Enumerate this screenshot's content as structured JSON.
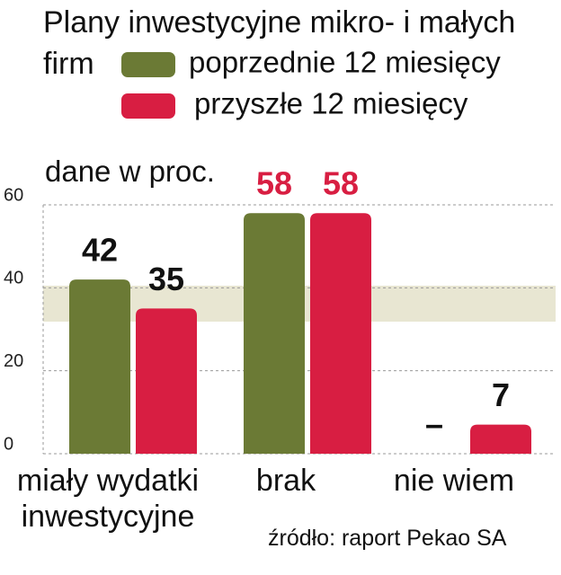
{
  "chart_data": {
    "type": "bar",
    "title": "Plany inwestycyjne mikro- i małych firm",
    "subtitle": "dane w proc.",
    "source": "źródło: raport Pekao SA",
    "categories": [
      "miały wydatki inwestycyjne",
      "brak",
      "nie wiem"
    ],
    "series": [
      {
        "name": "poprzednie 12 miesięcy",
        "color": "#6b7a35",
        "values": [
          42,
          58,
          null
        ],
        "value_labels": [
          "42",
          "58",
          "–"
        ]
      },
      {
        "name": "przyszłe 12 miesięcy",
        "color": "#d81e42",
        "values": [
          35,
          58,
          7
        ]
      }
    ],
    "ylim": [
      0,
      60
    ],
    "yticks": [
      0,
      20,
      40,
      60
    ],
    "grid": true
  }
}
